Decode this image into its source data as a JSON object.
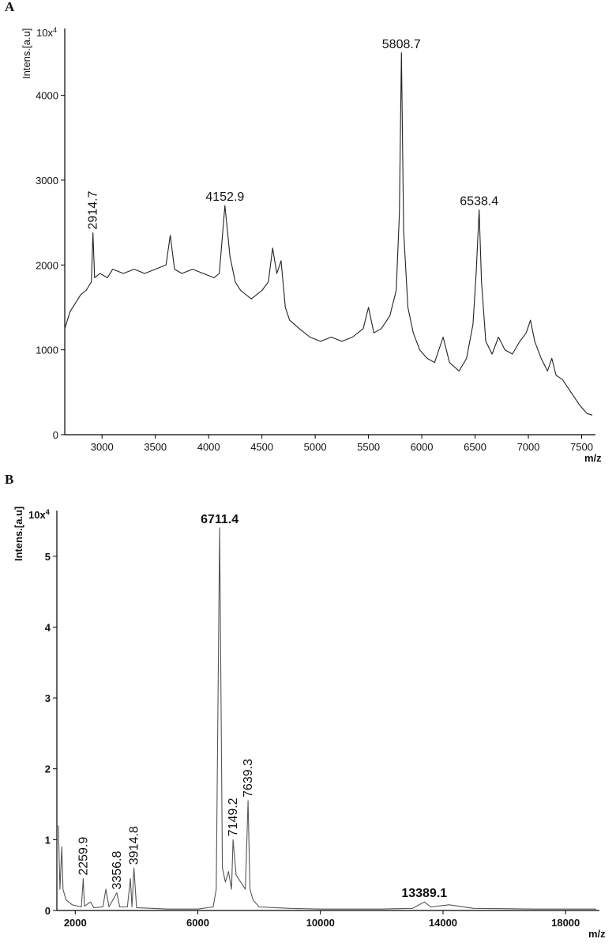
{
  "chart_data": [
    {
      "type": "line",
      "panel": "A",
      "scale_base": "10x",
      "scale_exponent": "4",
      "ylabel": "Intens.[a.u]",
      "xlabel": "m/z",
      "color": "#222222",
      "xlim": [
        2650,
        7600
      ],
      "ylim": [
        0,
        4750
      ],
      "xticks": [
        3000,
        3500,
        4000,
        4500,
        5000,
        5500,
        6000,
        6500,
        7000,
        7500
      ],
      "yticks": [
        0,
        1000,
        2000,
        3000,
        4000
      ],
      "x": [
        2650,
        2700,
        2750,
        2800,
        2850,
        2900,
        2914.7,
        2930,
        2980,
        3050,
        3100,
        3200,
        3300,
        3400,
        3500,
        3600,
        3640,
        3680,
        3750,
        3850,
        3950,
        4050,
        4100,
        4152.9,
        4200,
        4250,
        4300,
        4400,
        4500,
        4560,
        4600,
        4640,
        4680,
        4720,
        4760,
        4850,
        4950,
        5050,
        5150,
        5250,
        5350,
        5450,
        5500,
        5550,
        5620,
        5700,
        5760,
        5790,
        5808.7,
        5830,
        5870,
        5920,
        5980,
        6050,
        6120,
        6200,
        6260,
        6350,
        6420,
        6480,
        6510,
        6538.4,
        6560,
        6600,
        6660,
        6720,
        6780,
        6850,
        6920,
        6980,
        7020,
        7060,
        7120,
        7180,
        7220,
        7260,
        7320,
        7400,
        7480,
        7550,
        7600
      ],
      "y": [
        1250,
        1450,
        1550,
        1650,
        1700,
        1800,
        2380,
        1850,
        1900,
        1850,
        1950,
        1900,
        1950,
        1900,
        1950,
        2000,
        2350,
        1950,
        1900,
        1950,
        1900,
        1850,
        1900,
        2700,
        2100,
        1800,
        1700,
        1600,
        1700,
        1800,
        2200,
        1900,
        2050,
        1500,
        1350,
        1250,
        1150,
        1100,
        1150,
        1100,
        1150,
        1250,
        1500,
        1200,
        1250,
        1400,
        1700,
        2600,
        4500,
        2400,
        1500,
        1200,
        1000,
        900,
        850,
        1150,
        850,
        750,
        900,
        1300,
        1900,
        2650,
        1800,
        1100,
        950,
        1150,
        1000,
        950,
        1100,
        1200,
        1350,
        1100,
        900,
        750,
        900,
        700,
        650,
        500,
        350,
        250,
        230
      ],
      "annotations": [
        {
          "text": "2914.7",
          "x": 2914.7,
          "y": 2380,
          "rotated": true
        },
        {
          "text": "4152.9",
          "x": 4152.9,
          "y": 2700,
          "rotated": false
        },
        {
          "text": "5808.7",
          "x": 5808.7,
          "y": 4500,
          "rotated": false
        },
        {
          "text": "6538.4",
          "x": 6538.4,
          "y": 2650,
          "rotated": false
        }
      ]
    },
    {
      "type": "line",
      "panel": "B",
      "scale_base": "10x",
      "scale_exponent": "4",
      "ylabel": "Intens.[a.u]",
      "xlabel": "m/z",
      "color": "#555555",
      "xlim": [
        1400,
        19000
      ],
      "ylim": [
        0,
        5.6
      ],
      "xticks": [
        2000,
        6000,
        10000,
        14000,
        18000
      ],
      "yticks": [
        0,
        1,
        2,
        3,
        4,
        5
      ],
      "x": [
        1450,
        1500,
        1560,
        1600,
        1700,
        1900,
        2200,
        2259.9,
        2300,
        2500,
        2600,
        2900,
        3000,
        3100,
        3356.8,
        3450,
        3700,
        3800,
        3850,
        3914.8,
        4000,
        4500,
        5000,
        6000,
        6500,
        6600,
        6711.4,
        6800,
        6900,
        7000,
        7100,
        7149.2,
        7250,
        7400,
        7550,
        7639.3,
        7700,
        7800,
        8000,
        9000,
        10000,
        12000,
        13000,
        13389.1,
        13600,
        14200,
        15000,
        17000,
        19000
      ],
      "y": [
        1.2,
        0.3,
        0.9,
        0.3,
        0.15,
        0.08,
        0.05,
        0.45,
        0.06,
        0.12,
        0.04,
        0.05,
        0.3,
        0.05,
        0.25,
        0.05,
        0.05,
        0.45,
        0.05,
        0.6,
        0.04,
        0.03,
        0.02,
        0.02,
        0.05,
        0.3,
        5.4,
        0.6,
        0.4,
        0.55,
        0.3,
        1.0,
        0.5,
        0.4,
        0.3,
        1.55,
        0.3,
        0.15,
        0.05,
        0.03,
        0.02,
        0.02,
        0.03,
        0.12,
        0.05,
        0.08,
        0.03,
        0.02,
        0.02
      ],
      "annotations": [
        {
          "text": "2259.9",
          "x": 2259.9,
          "y": 0.45,
          "rotated": true
        },
        {
          "text": "3356.8",
          "x": 3356.8,
          "y": 0.25,
          "rotated": true
        },
        {
          "text": "3914.8",
          "x": 3914.8,
          "y": 0.6,
          "rotated": true
        },
        {
          "text": "6711.4",
          "x": 6711.4,
          "y": 5.4,
          "rotated": false
        },
        {
          "text": "7149.2",
          "x": 7149.2,
          "y": 1.0,
          "rotated": true
        },
        {
          "text": "7639.3",
          "x": 7639.3,
          "y": 1.55,
          "rotated": true
        },
        {
          "text": "13389.1",
          "x": 13389.1,
          "y": 0.12,
          "rotated": false
        }
      ]
    }
  ]
}
